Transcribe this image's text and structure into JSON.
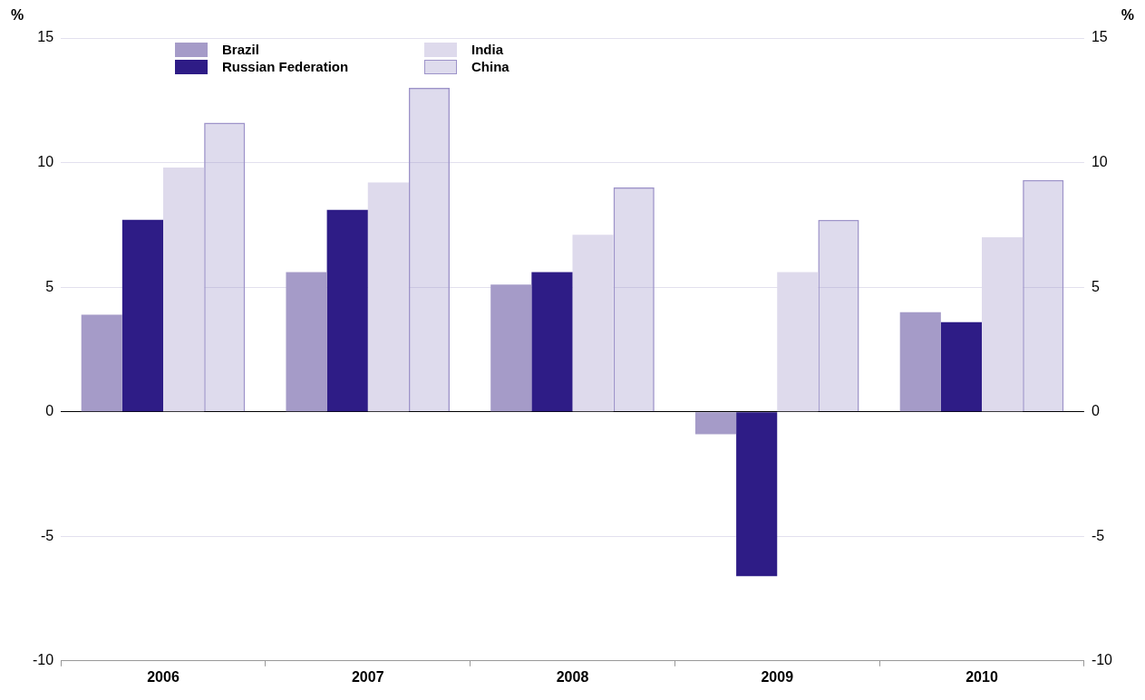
{
  "chart_data": {
    "type": "bar",
    "ylabel": "%",
    "y2label": "%",
    "categories": [
      "2006",
      "2007",
      "2008",
      "2009",
      "2010"
    ],
    "series": [
      {
        "name": "Brazil",
        "color": "#a59bc8",
        "values": [
          3.9,
          5.6,
          5.1,
          -0.9,
          4.0
        ]
      },
      {
        "name": "Russian Federation",
        "color": "#2e1c86",
        "values": [
          7.7,
          8.1,
          5.6,
          -6.6,
          3.6
        ]
      },
      {
        "name": "India",
        "color": "#dedaec",
        "values": [
          9.8,
          9.2,
          7.1,
          5.6,
          7.0
        ]
      },
      {
        "name": "China",
        "color": "#9d93c9",
        "values": [
          11.6,
          13.0,
          9.0,
          7.7,
          9.3
        ]
      }
    ],
    "ylim": [
      -10,
      15
    ],
    "yticks": [
      -10,
      -5,
      0,
      5,
      10,
      15
    ],
    "y2lim": [
      -10,
      15
    ],
    "y2ticks": [
      -10,
      -5,
      0,
      5,
      10,
      15
    ],
    "grid": "y",
    "legend": "top left"
  }
}
